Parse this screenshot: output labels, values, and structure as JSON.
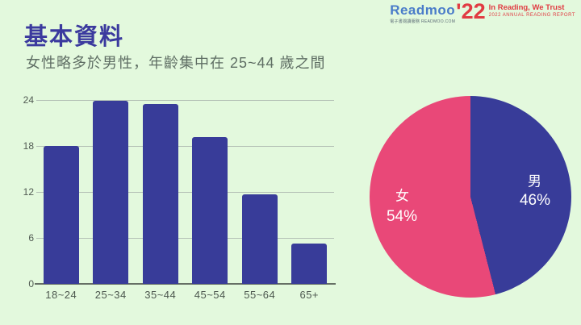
{
  "page": {
    "background_color": "#e3f9dd"
  },
  "header": {
    "title": "基本資料",
    "subtitle": "女性略多於男性，年齡集中在 25~44 歲之間"
  },
  "logo": {
    "brand": "Readmoo",
    "year": "'22",
    "tagline": "電子書閱讀服務 READMOO.COM",
    "slogan": "In Reading, We Trust",
    "report_line": "2022 ANNUAL READING REPORT",
    "brand_color": "#4a7cc9",
    "accent_color": "#e13b42"
  },
  "chart_data": [
    {
      "type": "bar",
      "title": "",
      "categories": [
        "18~24",
        "25~34",
        "35~44",
        "45~54",
        "55~64",
        "65+"
      ],
      "values": [
        18,
        23.9,
        23.5,
        19.2,
        11.7,
        5.3
      ],
      "xlabel": "",
      "ylabel": "",
      "ylim": [
        0,
        24
      ],
      "yticks": [
        0,
        6,
        12,
        18,
        24
      ],
      "grid": true,
      "bar_color": "#383c99"
    },
    {
      "type": "pie",
      "title": "",
      "slices": [
        {
          "label": "男",
          "value": 46,
          "display": "46%",
          "color": "#383c99"
        },
        {
          "label": "女",
          "value": 54,
          "display": "54%",
          "color": "#e94878"
        }
      ],
      "start_angle_deg": 0,
      "direction": "clockwise",
      "label_color": "#ffffff",
      "legend_position": "inside"
    }
  ]
}
